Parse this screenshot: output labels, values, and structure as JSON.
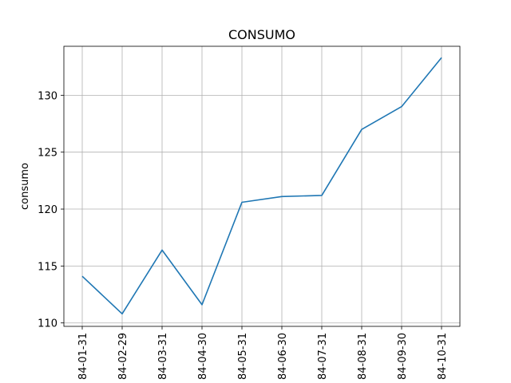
{
  "chart_data": {
    "type": "line",
    "title": "CONSUMO",
    "xlabel": "",
    "ylabel": "consumo",
    "x": [
      "84-01-31",
      "84-02-29",
      "84-03-31",
      "84-04-30",
      "84-05-31",
      "84-06-30",
      "84-07-31",
      "84-08-31",
      "84-09-30",
      "84-10-31"
    ],
    "series": [
      {
        "values": [
          114.1,
          110.8,
          116.4,
          111.6,
          120.6,
          121.1,
          121.2,
          127.0,
          129.0,
          133.3
        ]
      }
    ],
    "ylim": [
      109.7,
      134.3
    ],
    "yticks": [
      110,
      115,
      120,
      125,
      130
    ],
    "grid": true,
    "legend": "none",
    "line_color": "#1f77b4",
    "grid_color": "#b0b0b0"
  }
}
